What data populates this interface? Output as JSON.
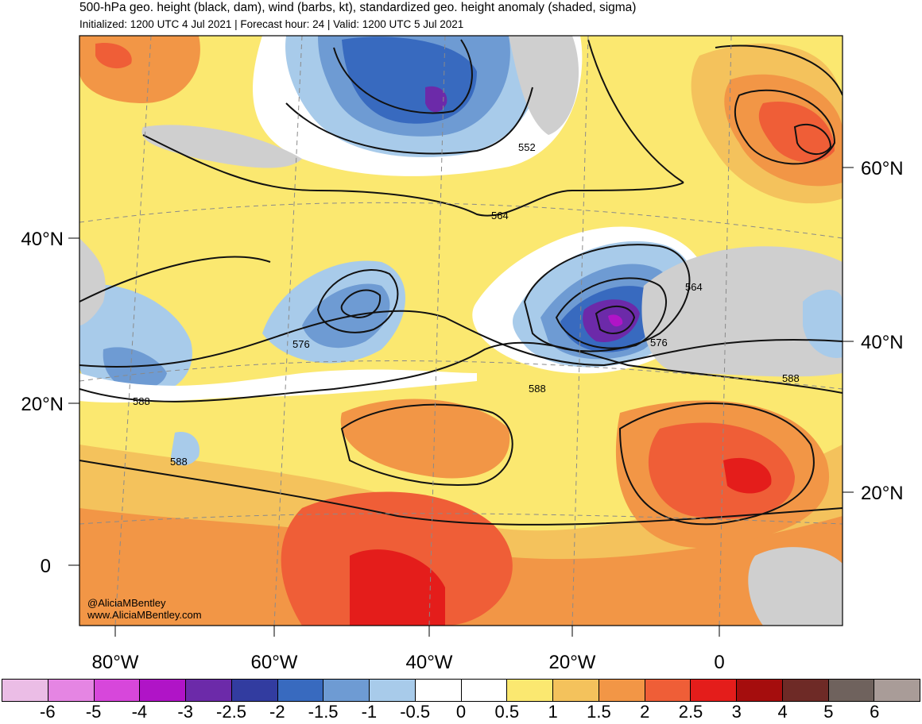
{
  "header": {
    "title": "500-hPa geo. height (black, dam), wind (barbs, kt), standardized geo. height anomaly (shaded, sigma)",
    "subtitle": "Initialized: 1200 UTC 4 Jul 2021 | Forecast hour: 24 | Valid: 1200 UTC 5 Jul 2021"
  },
  "map": {
    "left_axis_labels": [
      "40°N",
      "20°N",
      "0"
    ],
    "right_axis_labels": [
      "60°N",
      "40°N",
      "20°N"
    ],
    "bottom_axis_labels": [
      "80°W",
      "60°W",
      "40°W",
      "20°W",
      "0"
    ],
    "contour_labels": [
      "552",
      "564",
      "564",
      "576",
      "576",
      "588",
      "588",
      "588",
      "588"
    ],
    "credit": [
      "@AliciaMBentley",
      "www.AliciaMBentley.com"
    ]
  },
  "colorbar": {
    "colors": [
      "#ebbde6",
      "#e585e3",
      "#d747db",
      "#b014c7",
      "#6c2aa9",
      "#323ca0",
      "#386abf",
      "#6e9bd3",
      "#a8cbea",
      "#ffffff",
      "#ffffff",
      "#fbe870",
      "#f4c25c",
      "#f29646",
      "#ef5e37",
      "#e41d1b",
      "#a50d0d",
      "#6e2a26",
      "#6f625d",
      "#a99c98"
    ],
    "tick_labels": [
      "-6",
      "-5",
      "-4",
      "-3",
      "-2.5",
      "-2",
      "-1.5",
      "-1",
      "-0.5",
      "0",
      "0.5",
      "1",
      "1.5",
      "2",
      "2.5",
      "3",
      "4",
      "5",
      "6"
    ]
  }
}
